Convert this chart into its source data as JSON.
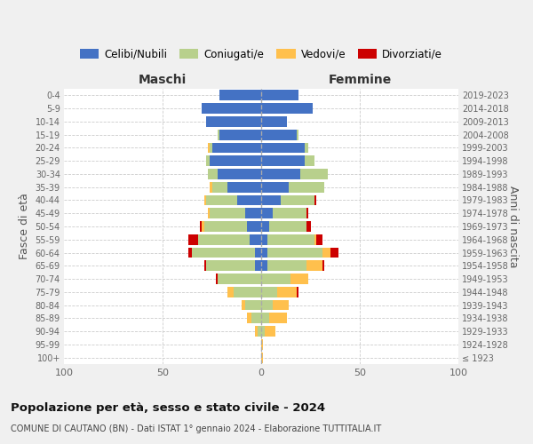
{
  "age_groups": [
    "100+",
    "95-99",
    "90-94",
    "85-89",
    "80-84",
    "75-79",
    "70-74",
    "65-69",
    "60-64",
    "55-59",
    "50-54",
    "45-49",
    "40-44",
    "35-39",
    "30-34",
    "25-29",
    "20-24",
    "15-19",
    "10-14",
    "5-9",
    "0-4"
  ],
  "years_right": [
    "≤ 1923",
    "1924-1928",
    "1929-1933",
    "1934-1938",
    "1939-1943",
    "1944-1948",
    "1949-1953",
    "1954-1958",
    "1959-1963",
    "1964-1968",
    "1969-1973",
    "1974-1978",
    "1979-1983",
    "1984-1988",
    "1989-1993",
    "1994-1998",
    "1999-2003",
    "2004-2008",
    "2009-2013",
    "2014-2018",
    "2019-2023"
  ],
  "male": {
    "celibi": [
      0,
      0,
      0,
      0,
      0,
      0,
      0,
      3,
      3,
      6,
      7,
      8,
      12,
      17,
      22,
      26,
      25,
      21,
      28,
      30,
      21
    ],
    "coniugati": [
      0,
      0,
      2,
      5,
      8,
      14,
      22,
      25,
      32,
      26,
      22,
      18,
      16,
      8,
      5,
      2,
      1,
      1,
      0,
      0,
      0
    ],
    "vedovi": [
      0,
      0,
      1,
      2,
      2,
      3,
      0,
      0,
      0,
      0,
      1,
      1,
      1,
      1,
      0,
      0,
      1,
      0,
      0,
      0,
      0
    ],
    "divorziati": [
      0,
      0,
      0,
      0,
      0,
      0,
      1,
      1,
      2,
      5,
      1,
      0,
      0,
      0,
      0,
      0,
      0,
      0,
      0,
      0,
      0
    ]
  },
  "female": {
    "nubili": [
      0,
      0,
      0,
      0,
      0,
      0,
      0,
      3,
      3,
      3,
      4,
      6,
      10,
      14,
      20,
      22,
      22,
      18,
      13,
      26,
      19
    ],
    "coniugate": [
      0,
      0,
      2,
      4,
      6,
      8,
      15,
      20,
      28,
      24,
      19,
      17,
      17,
      18,
      14,
      5,
      2,
      1,
      0,
      0,
      0
    ],
    "vedove": [
      1,
      1,
      5,
      9,
      8,
      10,
      9,
      8,
      4,
      1,
      0,
      0,
      0,
      0,
      0,
      0,
      0,
      0,
      0,
      0,
      0
    ],
    "divorziate": [
      0,
      0,
      0,
      0,
      0,
      1,
      0,
      1,
      4,
      3,
      2,
      1,
      1,
      0,
      0,
      0,
      0,
      0,
      0,
      0,
      0
    ]
  },
  "colors": {
    "celibi_nubili": "#4472c4",
    "coniugati": "#b8d08c",
    "vedovi": "#ffc04d",
    "divorziati": "#cc0000"
  },
  "xlim": 100,
  "title": "Popolazione per età, sesso e stato civile - 2024",
  "subtitle": "COMUNE DI CAUTANO (BN) - Dati ISTAT 1° gennaio 2024 - Elaborazione TUTTITALIA.IT",
  "ylabel": "Fasce di età",
  "ylabel_right": "Anni di nascita",
  "xlabel_left": "Maschi",
  "xlabel_right": "Femmine",
  "bg_color": "#f0f0f0",
  "plot_bg": "#ffffff"
}
